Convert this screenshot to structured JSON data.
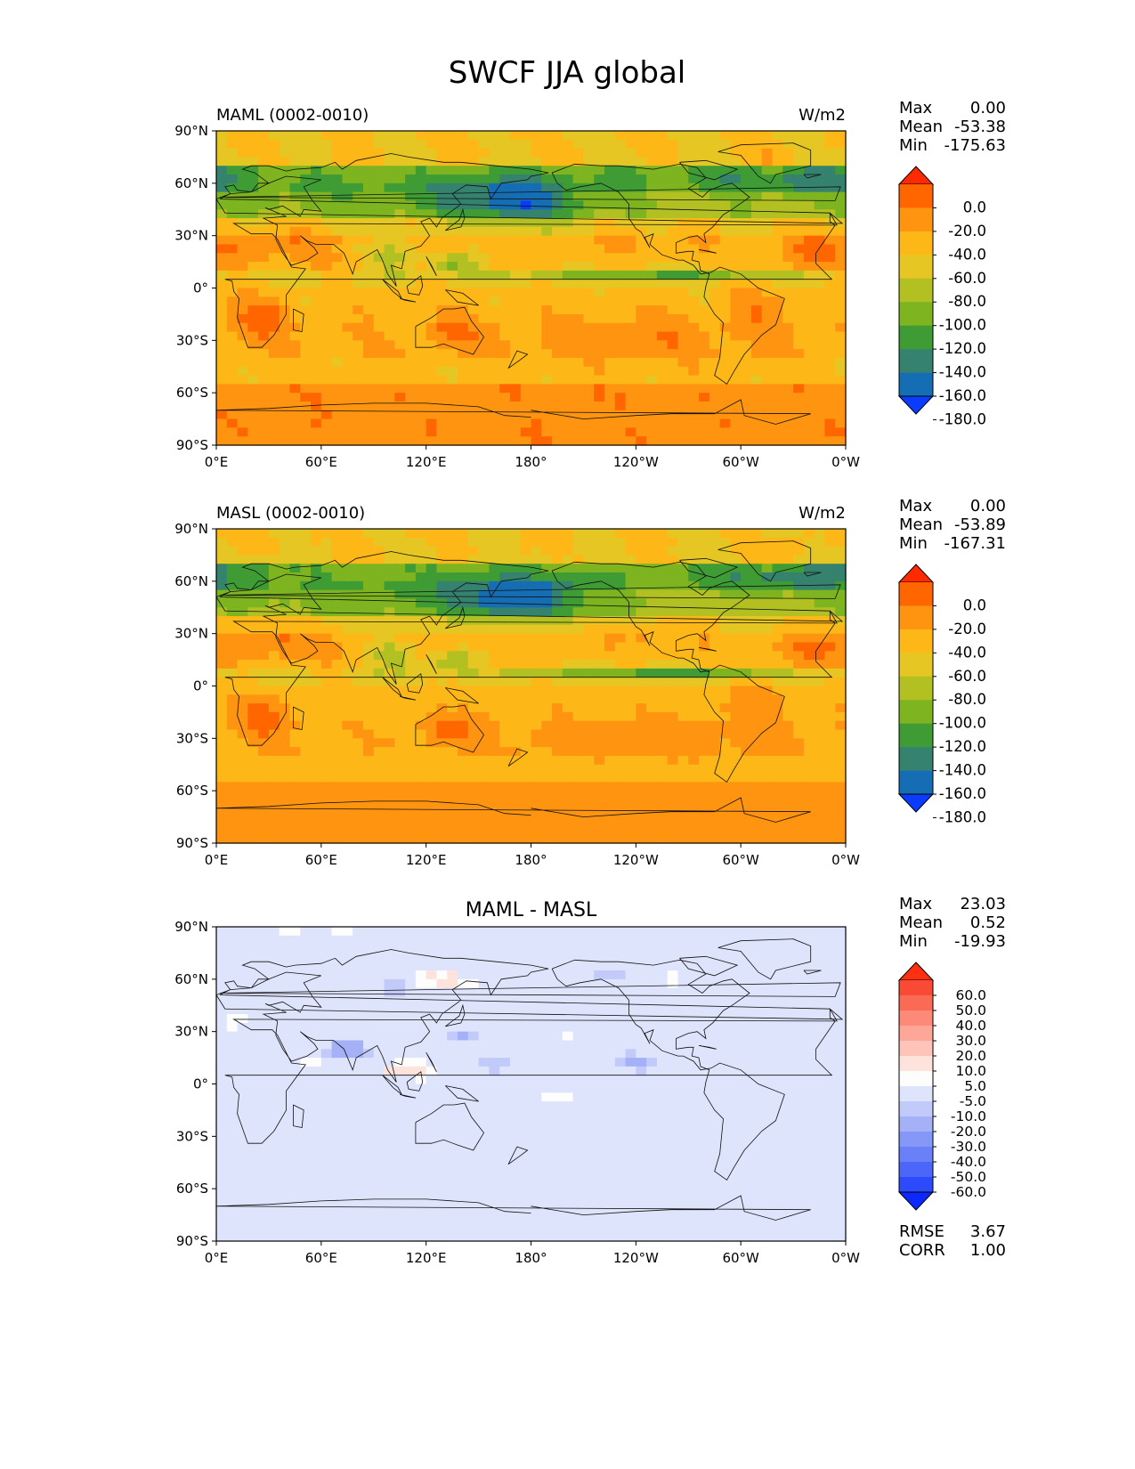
{
  "title": "SWCF JJA global",
  "chart_data": [
    {
      "type": "heatmap",
      "title": "MAML (0002-0010)",
      "units": "W/m2",
      "stats": {
        "max_label": "Max",
        "max": "0.00",
        "mean_label": "Mean",
        "mean": "-53.38",
        "min_label": "Min",
        "min": "-175.63"
      },
      "x_ticks": [
        "0°E",
        "60°E",
        "120°E",
        "180°",
        "120°W",
        "60°W",
        "0°W"
      ],
      "y_ticks": [
        "90°N",
        "60°N",
        "30°N",
        "0°",
        "30°S",
        "60°S",
        "90°S"
      ],
      "xlim": [
        0,
        360
      ],
      "ylim": [
        -90,
        90
      ],
      "colorbar": {
        "levels": [
          "0.0",
          "-20.0",
          "-40.0",
          "-60.0",
          "-80.0",
          "-100.0",
          "-120.0",
          "-140.0",
          "-160.0",
          "-180.0"
        ],
        "colors": [
          "#ff2a00",
          "#ff6600",
          "#ff9410",
          "#fdb818",
          "#e6c623",
          "#b2c121",
          "#7db41f",
          "#3f9c34",
          "#35826e",
          "#156db3",
          "#0a3cff"
        ],
        "extend": "both"
      }
    },
    {
      "type": "heatmap",
      "title": "MASL (0002-0010)",
      "units": "W/m2",
      "stats": {
        "max_label": "Max",
        "max": "0.00",
        "mean_label": "Mean",
        "mean": "-53.89",
        "min_label": "Min",
        "min": "-167.31"
      },
      "x_ticks": [
        "0°E",
        "60°E",
        "120°E",
        "180°",
        "120°W",
        "60°W",
        "0°W"
      ],
      "y_ticks": [
        "90°N",
        "60°N",
        "30°N",
        "0°",
        "30°S",
        "60°S",
        "90°S"
      ],
      "xlim": [
        0,
        360
      ],
      "ylim": [
        -90,
        90
      ],
      "colorbar": {
        "levels": [
          "0.0",
          "-20.0",
          "-40.0",
          "-60.0",
          "-80.0",
          "-100.0",
          "-120.0",
          "-140.0",
          "-160.0",
          "-180.0"
        ],
        "colors": [
          "#ff2a00",
          "#ff6600",
          "#ff9410",
          "#fdb818",
          "#e6c623",
          "#b2c121",
          "#7db41f",
          "#3f9c34",
          "#35826e",
          "#156db3",
          "#0a3cff"
        ],
        "extend": "both"
      }
    },
    {
      "type": "heatmap",
      "title": "MAML - MASL",
      "units": "",
      "stats": {
        "max_label": "Max",
        "max": "23.03",
        "mean_label": "Mean",
        "mean": "0.52",
        "min_label": "Min",
        "min": "-19.93"
      },
      "x_ticks": [
        "0°E",
        "60°E",
        "120°E",
        "180°",
        "120°W",
        "60°W",
        "0°W"
      ],
      "y_ticks": [
        "90°N",
        "60°N",
        "30°N",
        "0°",
        "30°S",
        "60°S",
        "90°S"
      ],
      "xlim": [
        0,
        360
      ],
      "ylim": [
        -90,
        90
      ],
      "colorbar": {
        "levels": [
          "60.0",
          "50.0",
          "40.0",
          "30.0",
          "20.0",
          "10.0",
          "5.0",
          "-5.0",
          "-10.0",
          "-20.0",
          "-30.0",
          "-40.0",
          "-50.0",
          "-60.0"
        ],
        "colors": [
          "#ff3010",
          "#f94a36",
          "#fb6a55",
          "#fd8a78",
          "#fea698",
          "#fec4ba",
          "#fee3dd",
          "#fdfdfd",
          "#dfe4fd",
          "#c2caf9",
          "#a4b1f7",
          "#8698f7",
          "#6a80f8",
          "#4c66fa",
          "#2d4bfd",
          "#0b28fe"
        ],
        "extend": "both"
      },
      "metrics": {
        "rmse_label": "RMSE",
        "rmse": "3.67",
        "corr_label": "CORR",
        "corr": "1.00"
      }
    }
  ]
}
